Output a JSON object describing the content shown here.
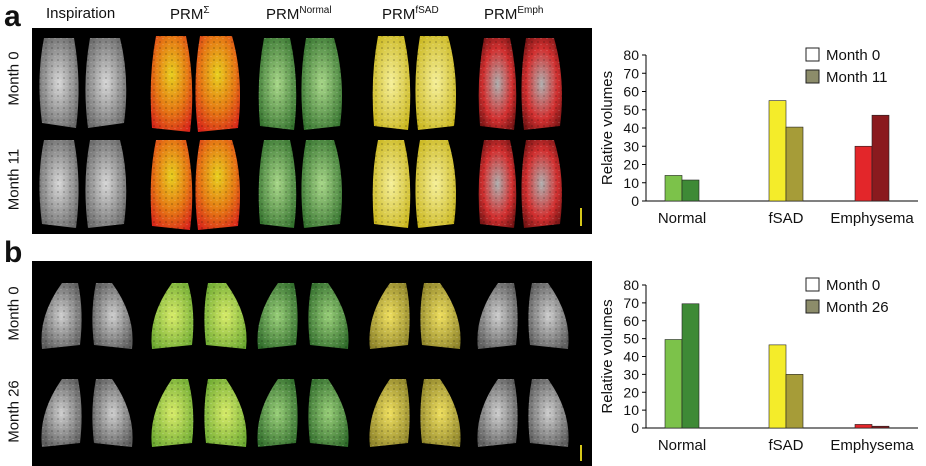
{
  "panels": [
    {
      "letter": "a",
      "row_labels": [
        "Month 0",
        "Month 11"
      ],
      "chart_data": {
        "type": "bar",
        "categories": [
          "Normal",
          "fSAD",
          "Emphysema"
        ],
        "series": [
          {
            "name": "Month 0",
            "values": [
              14,
              55,
              30
            ]
          },
          {
            "name": "Month 11",
            "values": [
              11.5,
              40.5,
              47
            ]
          }
        ],
        "ylabel": "Relative volumes",
        "ylim": [
          0,
          80
        ],
        "yticks": [
          0,
          10,
          20,
          30,
          40,
          50,
          60,
          70,
          80
        ],
        "legend": "top-right",
        "colors": {
          "Normal": [
            "#7cc24a",
            "#3e8a36"
          ],
          "fSAD": [
            "#f4ec2a",
            "#a69c38"
          ],
          "Emphysema": [
            "#e3262a",
            "#8a1a1e"
          ]
        }
      }
    },
    {
      "letter": "b",
      "row_labels": [
        "Month 0",
        "Month 26"
      ],
      "chart_data": {
        "type": "bar",
        "categories": [
          "Normal",
          "fSAD",
          "Emphysema"
        ],
        "series": [
          {
            "name": "Month 0",
            "values": [
              49.5,
              46.5,
              2
            ]
          },
          {
            "name": "Month 26",
            "values": [
              69.5,
              30,
              1
            ]
          }
        ],
        "ylabel": "Relative volumes",
        "ylim": [
          0,
          80
        ],
        "yticks": [
          0,
          10,
          20,
          30,
          40,
          50,
          60,
          70,
          80
        ],
        "legend": "top-right",
        "colors": {
          "Normal": [
            "#7cc24a",
            "#3e8a36"
          ],
          "fSAD": [
            "#f4ec2a",
            "#a69c38"
          ],
          "Emphysema": [
            "#e3262a",
            "#8a1a1e"
          ]
        }
      }
    }
  ],
  "columns": [
    {
      "base": "Inspiration",
      "sup": ""
    },
    {
      "base": "PRM",
      "sup": "Σ"
    },
    {
      "base": "PRM",
      "sup": "Normal"
    },
    {
      "base": "PRM",
      "sup": "fSAD"
    },
    {
      "base": "PRM",
      "sup": "Emph"
    }
  ],
  "legend_swatch_colors": [
    "#ffffff",
    "#8c8c6a"
  ]
}
